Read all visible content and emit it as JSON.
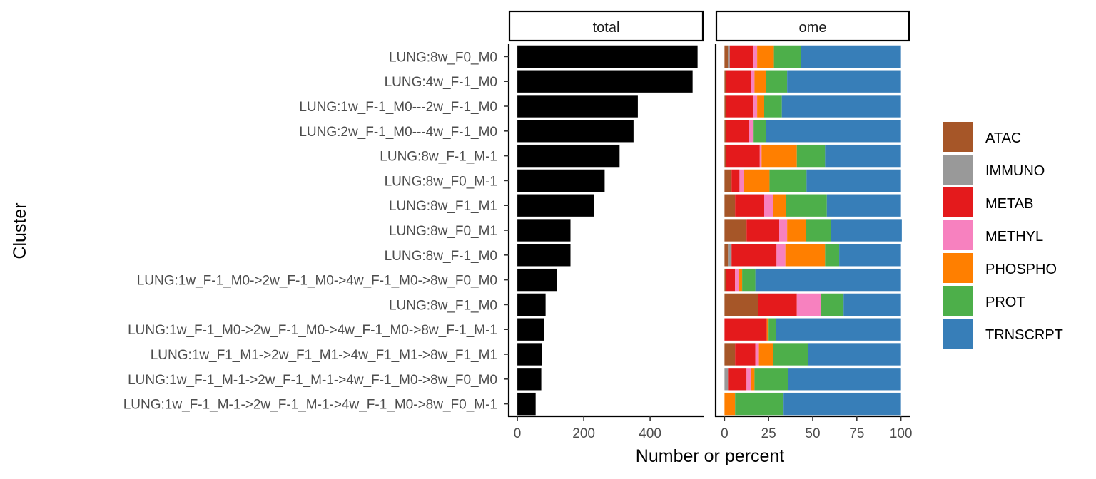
{
  "chart_data": {
    "type": "bar",
    "orientation": "horizontal",
    "ylabel": "Cluster",
    "xlabel": "Number or percent",
    "categories": [
      "LUNG:8w_F0_M0",
      "LUNG:4w_F-1_M0",
      "LUNG:1w_F-1_M0---2w_F-1_M0",
      "LUNG:2w_F-1_M0---4w_F-1_M0",
      "LUNG:8w_F-1_M-1",
      "LUNG:8w_F0_M-1",
      "LUNG:8w_F1_M1",
      "LUNG:8w_F0_M1",
      "LUNG:8w_F-1_M0",
      "LUNG:1w_F-1_M0->2w_F-1_M0->4w_F-1_M0->8w_F0_M0",
      "LUNG:8w_F1_M0",
      "LUNG:1w_F-1_M0->2w_F-1_M0->4w_F-1_M0->8w_F-1_M-1",
      "LUNG:1w_F1_M1->2w_F1_M1->4w_F1_M1->8w_F1_M1",
      "LUNG:1w_F-1_M-1->2w_F-1_M-1->4w_F-1_M0->8w_F0_M0",
      "LUNG:1w_F-1_M-1->2w_F-1_M-1->4w_F-1_M0->8w_F0_M-1"
    ],
    "panels": [
      {
        "strip": "total",
        "xlim": [
          -26,
          561
        ],
        "ticks": [
          0,
          200,
          400
        ],
        "color": "#000000",
        "values": [
          543,
          528,
          363,
          350,
          308,
          263,
          230,
          160,
          160,
          120,
          85,
          80,
          75,
          72,
          55
        ]
      },
      {
        "strip": "ome",
        "xlim": [
          -5,
          105
        ],
        "ticks": [
          0,
          25,
          50,
          75,
          100
        ],
        "stacked": true,
        "series": [
          {
            "name": "ATAC",
            "color": "#A65628",
            "values": [
              2,
              1,
              1,
              1,
              1,
              4,
              6,
              12.5,
              2,
              1,
              19,
              0,
              6,
              0,
              0
            ]
          },
          {
            "name": "IMMUNO",
            "color": "#999999",
            "values": [
              1,
              0,
              0,
              0,
              0,
              0,
              0,
              0,
              2,
              0,
              0,
              0,
              0,
              2,
              0
            ]
          },
          {
            "name": "METAB",
            "color": "#E41A1C",
            "values": [
              13.5,
              14,
              15.5,
              13,
              19,
              4.5,
              16.5,
              18.5,
              25.5,
              5,
              22,
              24,
              11.5,
              10.5,
              0
            ]
          },
          {
            "name": "METHYL",
            "color": "#F781BF",
            "values": [
              2,
              2,
              2,
              2.5,
              1,
              2.5,
              5,
              4.5,
              5,
              2,
              13.5,
              0,
              2,
              2.5,
              0
            ]
          },
          {
            "name": "PHOSPHO",
            "color": "#FF7F00",
            "values": [
              9.5,
              6.5,
              4,
              0,
              20,
              14.5,
              7.5,
              10.5,
              22.5,
              2,
              0,
              1,
              8,
              2,
              6
            ]
          },
          {
            "name": "PROT",
            "color": "#4DAF4A",
            "values": [
              15.5,
              12,
              10,
              7,
              16,
              21,
              23,
              14.5,
              8,
              7.5,
              13,
              4,
              20,
              19,
              27.5
            ]
          },
          {
            "name": "TRNSCRPT",
            "color": "#377EB8",
            "values": [
              56.5,
              64.5,
              67.5,
              76.5,
              43,
              53.5,
              42,
              40,
              35,
              82.5,
              32.5,
              71,
              52.5,
              64,
              66.5
            ]
          }
        ]
      }
    ]
  }
}
